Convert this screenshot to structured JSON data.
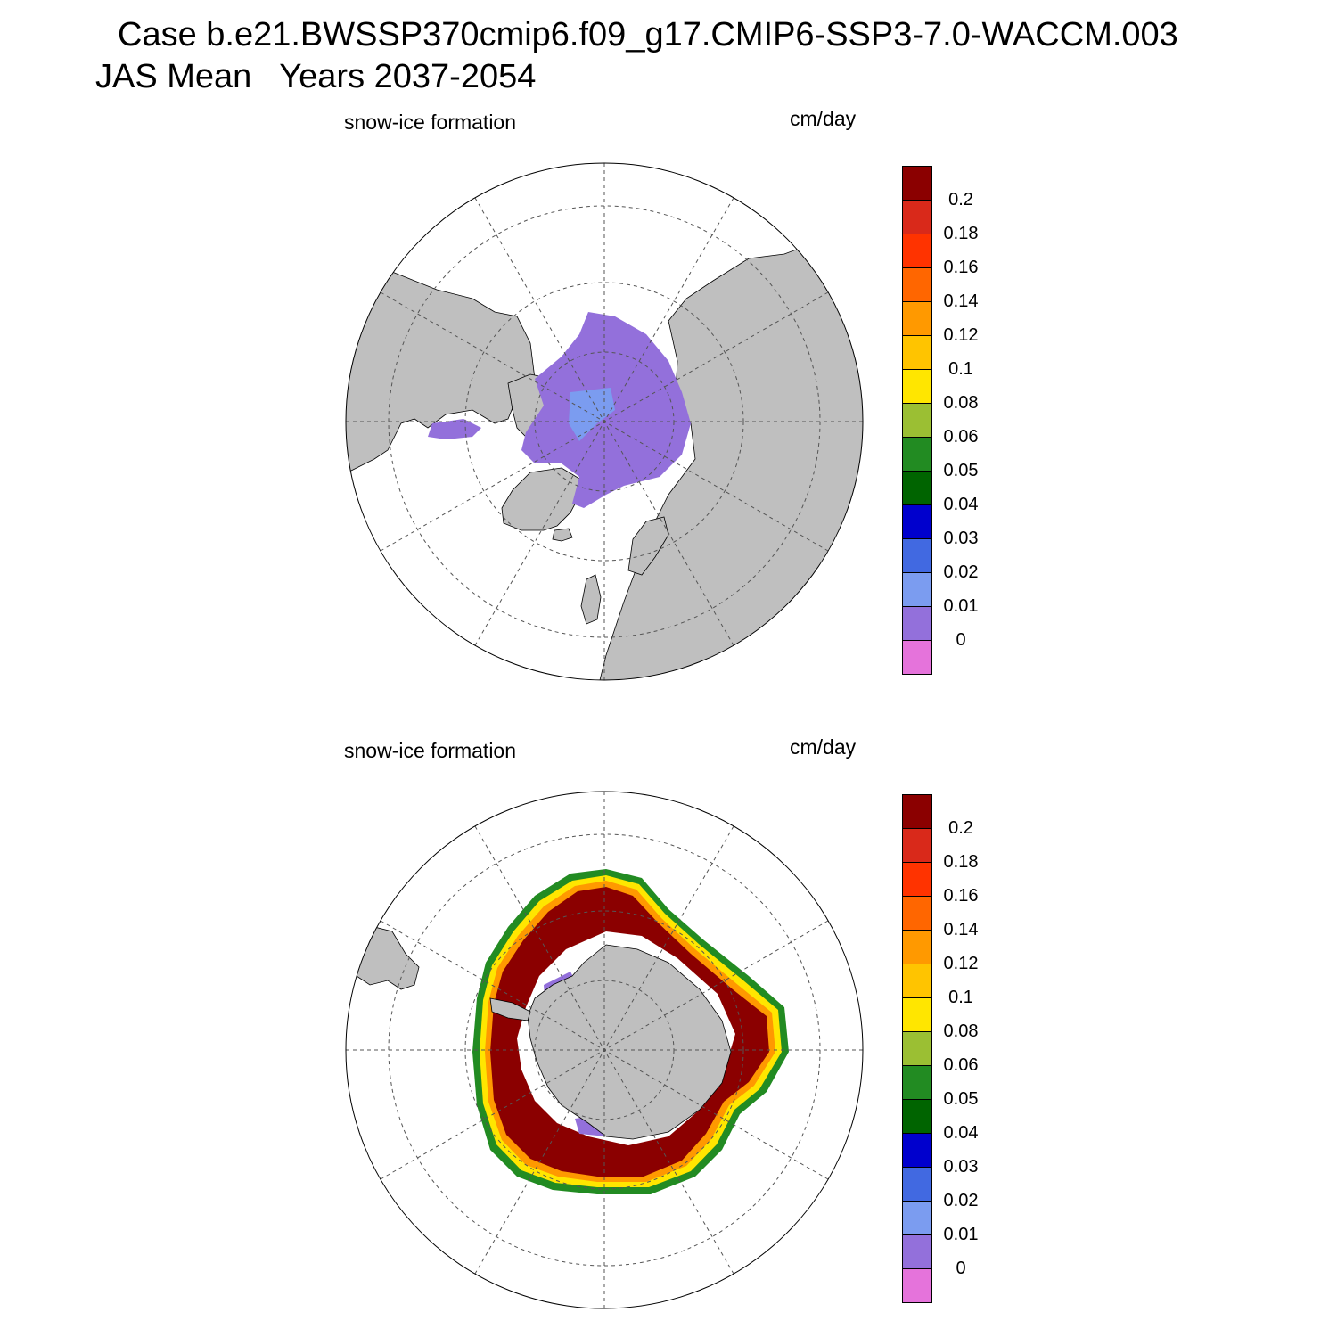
{
  "header": {
    "line1": "Case b.e21.BWSSP370cmip6.f09_g17.CMIP6-SSP3-7.0-WACCM.003",
    "line2": "JAS Mean   Years 2037-2054"
  },
  "panels": [
    {
      "id": "north",
      "hemisphere": "Arctic",
      "left_label": "snow-ice formation",
      "units": "cm/day"
    },
    {
      "id": "south",
      "hemisphere": "Antarctic",
      "left_label": "snow-ice formation",
      "units": "cm/day"
    }
  ],
  "colorbar": {
    "labels": [
      "0.2",
      "0.18",
      "0.16",
      "0.14",
      "0.12",
      "0.1",
      "0.08",
      "0.06",
      "0.05",
      "0.04",
      "0.03",
      "0.02",
      "0.01",
      "0"
    ],
    "colors": [
      "#8b0000",
      "#d9291a",
      "#ff3300",
      "#ff6600",
      "#ff9900",
      "#ffc400",
      "#ffe600",
      "#9bbf33",
      "#228b22",
      "#006400",
      "#0000cd",
      "#4169e1",
      "#7b9cf0",
      "#9370db",
      "#e573db"
    ]
  },
  "colors": {
    "land": "#bfbfbf",
    "ocean": "#ffffff",
    "grid": "#555555"
  }
}
